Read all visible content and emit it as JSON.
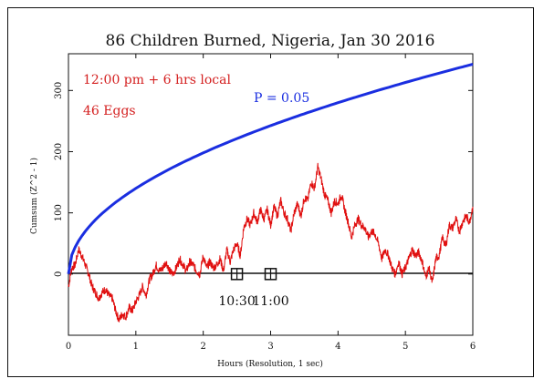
{
  "chart_data": {
    "type": "line",
    "title": "86 Children Burned, Nigeria, Jan 30 2016",
    "xlabel": "Hours (Resolution, 1 sec)",
    "ylabel": "Cumsum (Z^2 - 1)",
    "xlim": [
      0,
      6
    ],
    "ylim": [
      -100,
      360
    ],
    "x_ticks": [
      0,
      1,
      2,
      3,
      4,
      5,
      6
    ],
    "y_ticks": [
      0,
      100,
      200,
      300
    ],
    "annotations": {
      "time_window": "12:00 pm + 6 hrs local",
      "eggs": "46 Eggs",
      "probability_label": "P = 0.05"
    },
    "markers": [
      {
        "x": 2.5,
        "y": 0,
        "label": "10:30"
      },
      {
        "x": 3.0,
        "y": 0,
        "label": "11:00"
      }
    ],
    "series": [
      {
        "name": "cumsum",
        "color": "#e01010",
        "points": [
          [
            0.0,
            -20
          ],
          [
            0.05,
            10
          ],
          [
            0.1,
            15
          ],
          [
            0.15,
            40
          ],
          [
            0.2,
            30
          ],
          [
            0.25,
            15
          ],
          [
            0.3,
            0
          ],
          [
            0.35,
            -20
          ],
          [
            0.4,
            -30
          ],
          [
            0.45,
            -40
          ],
          [
            0.5,
            -30
          ],
          [
            0.55,
            -25
          ],
          [
            0.6,
            -35
          ],
          [
            0.65,
            -40
          ],
          [
            0.7,
            -60
          ],
          [
            0.75,
            -75
          ],
          [
            0.8,
            -65
          ],
          [
            0.85,
            -70
          ],
          [
            0.9,
            -55
          ],
          [
            0.95,
            -60
          ],
          [
            1.0,
            -45
          ],
          [
            1.05,
            -35
          ],
          [
            1.1,
            -20
          ],
          [
            1.15,
            -35
          ],
          [
            1.2,
            -10
          ],
          [
            1.25,
            0
          ],
          [
            1.3,
            15
          ],
          [
            1.35,
            5
          ],
          [
            1.4,
            10
          ],
          [
            1.45,
            20
          ],
          [
            1.5,
            5
          ],
          [
            1.55,
            0
          ],
          [
            1.6,
            10
          ],
          [
            1.65,
            25
          ],
          [
            1.7,
            15
          ],
          [
            1.75,
            5
          ],
          [
            1.8,
            20
          ],
          [
            1.85,
            15
          ],
          [
            1.9,
            5
          ],
          [
            1.95,
            0
          ],
          [
            2.0,
            30
          ],
          [
            2.05,
            10
          ],
          [
            2.1,
            20
          ],
          [
            2.15,
            10
          ],
          [
            2.2,
            15
          ],
          [
            2.25,
            25
          ],
          [
            2.3,
            5
          ],
          [
            2.35,
            40
          ],
          [
            2.4,
            20
          ],
          [
            2.45,
            40
          ],
          [
            2.5,
            50
          ],
          [
            2.55,
            30
          ],
          [
            2.6,
            75
          ],
          [
            2.65,
            90
          ],
          [
            2.7,
            80
          ],
          [
            2.75,
            100
          ],
          [
            2.8,
            85
          ],
          [
            2.85,
            105
          ],
          [
            2.9,
            90
          ],
          [
            2.95,
            105
          ],
          [
            3.0,
            80
          ],
          [
            3.05,
            110
          ],
          [
            3.1,
            95
          ],
          [
            3.15,
            120
          ],
          [
            3.2,
            100
          ],
          [
            3.25,
            90
          ],
          [
            3.3,
            70
          ],
          [
            3.35,
            100
          ],
          [
            3.4,
            115
          ],
          [
            3.45,
            95
          ],
          [
            3.5,
            125
          ],
          [
            3.55,
            120
          ],
          [
            3.6,
            150
          ],
          [
            3.65,
            140
          ],
          [
            3.7,
            175
          ],
          [
            3.75,
            155
          ],
          [
            3.8,
            130
          ],
          [
            3.85,
            120
          ],
          [
            3.9,
            100
          ],
          [
            3.95,
            120
          ],
          [
            4.0,
            115
          ],
          [
            4.05,
            130
          ],
          [
            4.1,
            105
          ],
          [
            4.15,
            85
          ],
          [
            4.2,
            60
          ],
          [
            4.25,
            80
          ],
          [
            4.3,
            90
          ],
          [
            4.35,
            80
          ],
          [
            4.4,
            75
          ],
          [
            4.45,
            60
          ],
          [
            4.5,
            70
          ],
          [
            4.55,
            65
          ],
          [
            4.6,
            50
          ],
          [
            4.65,
            25
          ],
          [
            4.7,
            40
          ],
          [
            4.75,
            30
          ],
          [
            4.8,
            10
          ],
          [
            4.85,
            0
          ],
          [
            4.9,
            20
          ],
          [
            4.95,
            0
          ],
          [
            5.0,
            10
          ],
          [
            5.05,
            25
          ],
          [
            5.1,
            40
          ],
          [
            5.15,
            30
          ],
          [
            5.2,
            35
          ],
          [
            5.25,
            20
          ],
          [
            5.3,
            -5
          ],
          [
            5.35,
            10
          ],
          [
            5.4,
            -15
          ],
          [
            5.45,
            25
          ],
          [
            5.5,
            30
          ],
          [
            5.55,
            60
          ],
          [
            5.6,
            45
          ],
          [
            5.65,
            80
          ],
          [
            5.7,
            75
          ],
          [
            5.75,
            90
          ],
          [
            5.8,
            70
          ],
          [
            5.85,
            85
          ],
          [
            5.9,
            95
          ],
          [
            5.95,
            85
          ],
          [
            6.0,
            110
          ]
        ]
      },
      {
        "name": "P = 0.05",
        "color": "#1a2ee0"
      }
    ],
    "grid": false
  }
}
